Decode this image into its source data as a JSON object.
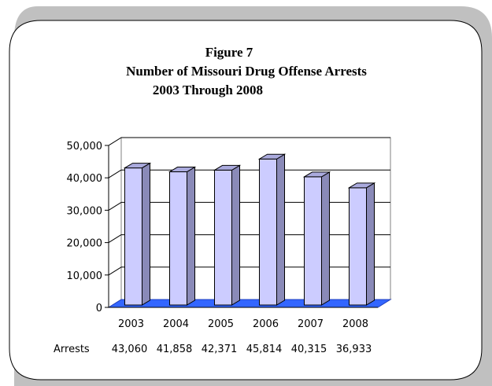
{
  "chart_data": {
    "type": "bar",
    "title": "Figure 7",
    "subtitle_line1": "Number of Missouri Drug Offense Arrests",
    "subtitle_line2": "2003 Through 2008",
    "categories": [
      "2003",
      "2004",
      "2005",
      "2006",
      "2007",
      "2008"
    ],
    "series": [
      {
        "name": "Arrests",
        "values": [
          43060,
          41858,
          42371,
          45814,
          40315,
          36933
        ]
      }
    ],
    "data_labels": [
      "43,060",
      "41,858",
      "42,371",
      "45,814",
      "40,315",
      "36,933"
    ],
    "ylim": [
      0,
      50000
    ],
    "yticks": [
      0,
      10000,
      20000,
      30000,
      40000,
      50000
    ],
    "ytick_labels": [
      "0",
      "10,000",
      "20,000",
      "30,000",
      "40,000",
      "50,000"
    ],
    "grid": true,
    "three_d": true,
    "colors": {
      "bar_front": "#ccccff",
      "bar_side": "#8a8ab8",
      "bar_top": "#aaaadd",
      "floor": "#3366ff",
      "frame_shadow": "#c0c0c0"
    }
  }
}
